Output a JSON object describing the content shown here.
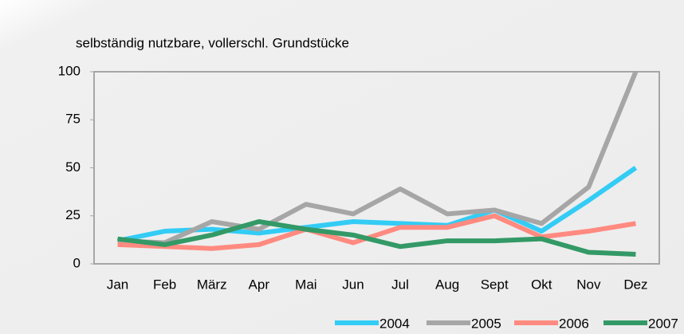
{
  "chart_data": {
    "type": "line",
    "title": "selbständig nutzbare,  vollerschl. Grundstücke",
    "categories": [
      "Jan",
      "Feb",
      "März",
      "Apr",
      "Mai",
      "Jun",
      "Jul",
      "Aug",
      "Sept",
      "Okt",
      "Nov",
      "Dez"
    ],
    "series": [
      {
        "name": "2004",
        "color": "#33ccf5",
        "values": [
          12,
          17,
          18,
          16,
          19,
          22,
          21,
          20,
          28,
          17,
          33,
          50
        ]
      },
      {
        "name": "2005",
        "color": "#a6a6a6",
        "values": [
          12,
          11,
          22,
          18,
          31,
          26,
          39,
          26,
          28,
          21,
          40,
          100
        ]
      },
      {
        "name": "2006",
        "color": "#ff8a80",
        "values": [
          10,
          9,
          8,
          10,
          18,
          11,
          19,
          19,
          25,
          14,
          17,
          21
        ]
      },
      {
        "name": "2007",
        "color": "#339966",
        "values": [
          13,
          10,
          15,
          22,
          18,
          15,
          9,
          12,
          12,
          13,
          6,
          5
        ]
      }
    ],
    "ylim": [
      0,
      100
    ],
    "yticks": [
      0,
      25,
      50,
      75,
      100
    ],
    "grid": false,
    "legend": "bottom"
  }
}
